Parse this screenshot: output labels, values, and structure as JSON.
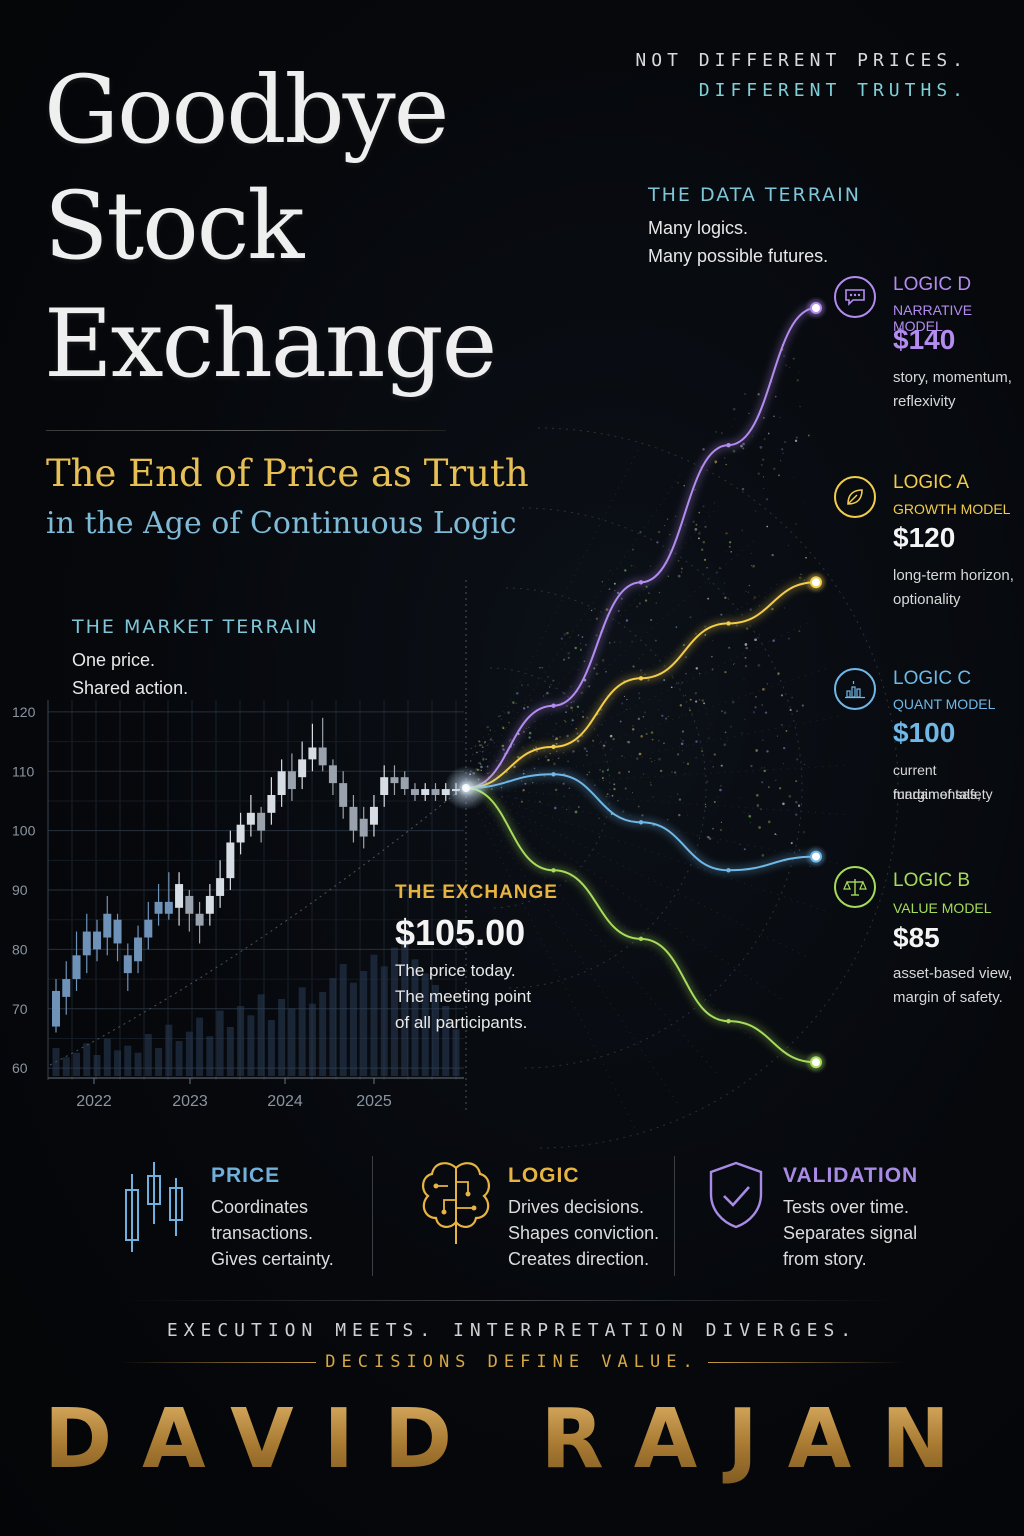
{
  "title_lines": [
    "Goodbye",
    "Stock",
    "Exchange"
  ],
  "tagline": {
    "line1": "NOT DIFFERENT PRICES.",
    "line2": "DIFFERENT TRUTHS."
  },
  "subtitle": {
    "line1": "The End of Price as Truth",
    "line2": "in the Age of Continuous Logic"
  },
  "data_terrain": {
    "heading": "THE DATA TERRAIN",
    "line1": "Many logics.",
    "line2": "Many possible futures."
  },
  "market_terrain": {
    "heading": "THE MARKET TERRAIN",
    "line1": "One price.",
    "line2": "Shared action."
  },
  "exchange": {
    "heading": "THE EXCHANGE",
    "price": "$105.00",
    "line1": "The price today.",
    "line2": "The meeting point",
    "line3": "of all participants."
  },
  "logics": [
    {
      "name": "LOGIC D",
      "model": "NARRATIVE MODEL",
      "price": "$140",
      "desc1": "story, momentum,",
      "desc2": "reflexivity",
      "color": "#b48cf0",
      "icon": "chat-bubble-icon"
    },
    {
      "name": "LOGIC A",
      "model": "GROWTH MODEL",
      "price": "$120",
      "desc1": "long-term horizon,",
      "desc2": "optionality",
      "color": "#f2cc4a",
      "icon": "leaf-icon"
    },
    {
      "name": "LOGIC C",
      "model": "QUANT MODEL",
      "price": "$100",
      "desc1": "current fundamentals,",
      "desc2": "margin of safety",
      "color": "#6fb8e8",
      "icon": "bar-chart-icon"
    },
    {
      "name": "LOGIC B",
      "model": "VALUE MODEL",
      "price": "$85",
      "desc1": "asset-based view,",
      "desc2": "margin of safety.",
      "color": "#a6dc5a",
      "icon": "scales-icon"
    }
  ],
  "pillars": [
    {
      "title": "PRICE",
      "l1": "Coordinates",
      "l2": "transactions.",
      "l3": "Gives certainty.",
      "color": "#6fb0dc",
      "icon": "candlestick-icon"
    },
    {
      "title": "LOGIC",
      "l1": "Drives decisions.",
      "l2": "Shapes conviction.",
      "l3": "Creates direction.",
      "color": "#e8b441",
      "icon": "brain-circuit-icon"
    },
    {
      "title": "VALIDATION",
      "l1": "Tests over time.",
      "l2": "Separates signal",
      "l3": "from story.",
      "color": "#a98be6",
      "icon": "shield-check-icon"
    }
  ],
  "footer": {
    "line1": "EXECUTION MEETS.   INTERPRETATION DIVERGES.",
    "line2": "DECISIONS DEFINE VALUE."
  },
  "author": "DAVID RAJAN",
  "colors": {
    "gold": "#d4a845",
    "cyan": "#7fc6d8",
    "background": "#06080c"
  },
  "chart_data": [
    {
      "type": "candlestick",
      "title": "",
      "y_ticks": [
        60,
        70,
        80,
        90,
        100,
        110,
        120
      ],
      "ylim": [
        58,
        122
      ],
      "x_ticks": [
        "2022",
        "2023",
        "2024",
        "2025"
      ],
      "candles": [
        {
          "o": 67,
          "c": 73,
          "h": 75,
          "l": 66
        },
        {
          "o": 72,
          "c": 75,
          "h": 78,
          "l": 69
        },
        {
          "o": 75,
          "c": 79,
          "h": 83,
          "l": 73
        },
        {
          "o": 79,
          "c": 83,
          "h": 86,
          "l": 76
        },
        {
          "o": 83,
          "c": 80,
          "h": 85,
          "l": 78
        },
        {
          "o": 82,
          "c": 86,
          "h": 89,
          "l": 79
        },
        {
          "o": 85,
          "c": 81,
          "h": 86,
          "l": 78
        },
        {
          "o": 79,
          "c": 76,
          "h": 81,
          "l": 73
        },
        {
          "o": 78,
          "c": 82,
          "h": 84,
          "l": 76
        },
        {
          "o": 82,
          "c": 85,
          "h": 88,
          "l": 80
        },
        {
          "o": 86,
          "c": 88,
          "h": 91,
          "l": 84
        },
        {
          "o": 88,
          "c": 86,
          "h": 93,
          "l": 85
        },
        {
          "o": 87,
          "c": 91,
          "h": 93,
          "l": 84
        },
        {
          "o": 89,
          "c": 86,
          "h": 90,
          "l": 83
        },
        {
          "o": 86,
          "c": 84,
          "h": 88,
          "l": 81
        },
        {
          "o": 86,
          "c": 89,
          "h": 91,
          "l": 84
        },
        {
          "o": 89,
          "c": 92,
          "h": 95,
          "l": 87
        },
        {
          "o": 92,
          "c": 98,
          "h": 100,
          "l": 90
        },
        {
          "o": 98,
          "c": 101,
          "h": 103,
          "l": 96
        },
        {
          "o": 101,
          "c": 103,
          "h": 106,
          "l": 99
        },
        {
          "o": 103,
          "c": 100,
          "h": 104,
          "l": 98
        },
        {
          "o": 103,
          "c": 106,
          "h": 109,
          "l": 101
        },
        {
          "o": 106,
          "c": 110,
          "h": 112,
          "l": 104
        },
        {
          "o": 110,
          "c": 107,
          "h": 113,
          "l": 105
        },
        {
          "o": 109,
          "c": 112,
          "h": 115,
          "l": 107
        },
        {
          "o": 112,
          "c": 114,
          "h": 118,
          "l": 110
        },
        {
          "o": 114,
          "c": 111,
          "h": 119,
          "l": 110
        },
        {
          "o": 111,
          "c": 108,
          "h": 112,
          "l": 106
        },
        {
          "o": 108,
          "c": 104,
          "h": 110,
          "l": 102
        },
        {
          "o": 104,
          "c": 100,
          "h": 106,
          "l": 98
        },
        {
          "o": 102,
          "c": 99,
          "h": 104,
          "l": 97
        },
        {
          "o": 101,
          "c": 104,
          "h": 106,
          "l": 99
        },
        {
          "o": 106,
          "c": 109,
          "h": 111,
          "l": 104
        },
        {
          "o": 109,
          "c": 108,
          "h": 111,
          "l": 106
        },
        {
          "o": 109,
          "c": 107,
          "h": 110,
          "l": 106
        },
        {
          "o": 107,
          "c": 106,
          "h": 108,
          "l": 105
        },
        {
          "o": 106,
          "c": 107,
          "h": 108,
          "l": 105
        },
        {
          "o": 107,
          "c": 106,
          "h": 108,
          "l": 105
        },
        {
          "o": 106,
          "c": 107,
          "h": 108,
          "l": 105
        },
        {
          "o": 107,
          "c": 107,
          "h": 108,
          "l": 106
        }
      ],
      "volume": [
        12,
        8,
        10,
        14,
        9,
        16,
        11,
        13,
        10,
        18,
        12,
        22,
        15,
        19,
        25,
        17,
        28,
        21,
        30,
        26,
        35,
        24,
        33,
        29,
        38,
        31,
        36,
        42,
        48,
        40,
        45,
        52,
        47,
        55,
        60,
        50,
        44,
        39,
        30,
        20
      ]
    },
    {
      "type": "line",
      "title": "",
      "x": [
        0,
        1,
        2,
        3,
        4
      ],
      "series": [
        {
          "name": "LOGIC D",
          "values": [
            105,
            111,
            120,
            130,
            140
          ]
        },
        {
          "name": "LOGIC A",
          "values": [
            105,
            108,
            113,
            117,
            120
          ]
        },
        {
          "name": "LOGIC C",
          "values": [
            105,
            106,
            102.5,
            99,
            100
          ]
        },
        {
          "name": "LOGIC B",
          "values": [
            105,
            99,
            94,
            88,
            85
          ]
        }
      ]
    }
  ]
}
